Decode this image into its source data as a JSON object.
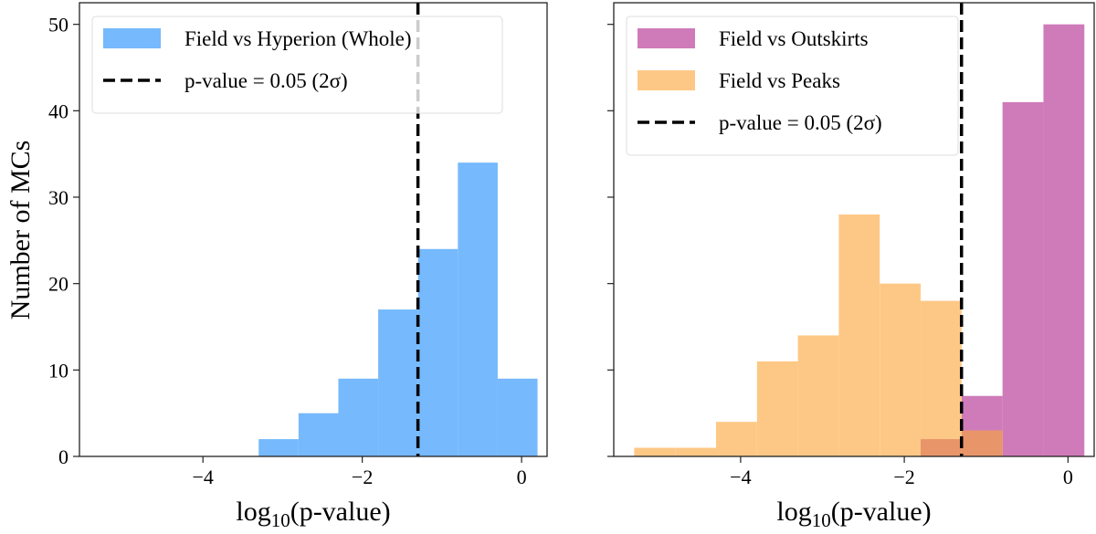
{
  "chart_data": [
    {
      "type": "bar",
      "panel": "left",
      "xlabel": "log10(p-value)",
      "ylabel": "Number of MCs",
      "xlim": [
        -5.55,
        0.32
      ],
      "ylim": [
        0,
        52.5
      ],
      "xticks": [
        -4,
        -2,
        0
      ],
      "xtick_labels": [
        "−4",
        "−2",
        "0"
      ],
      "yticks": [
        0,
        10,
        20,
        30,
        40,
        50
      ],
      "ytick_labels": [
        "0",
        "10",
        "20",
        "30",
        "40",
        "50"
      ],
      "grid": false,
      "legend_placement": "top-center",
      "series": [
        {
          "name": "Field vs Hyperion (Whole)",
          "color": "#76b9fc",
          "bin_edges": [
            -3.3,
            -2.8,
            -2.3,
            -1.8,
            -1.3,
            -0.8,
            -0.3,
            0.2
          ],
          "values": [
            2,
            5,
            9,
            17,
            24,
            34,
            9
          ]
        }
      ],
      "vline": {
        "name": "p-value = 0.05 (2σ)",
        "x": -1.301,
        "color": "#000000",
        "style": "dashed"
      }
    },
    {
      "type": "bar",
      "panel": "right",
      "xlabel": "log10(p-value)",
      "xlim": [
        -5.55,
        0.32
      ],
      "ylim": [
        0,
        52.5
      ],
      "xticks": [
        -4,
        -2,
        0
      ],
      "xtick_labels": [
        "−4",
        "−2",
        "0"
      ],
      "yticks": [
        0,
        10,
        20,
        30,
        40,
        50
      ],
      "grid": false,
      "legend_placement": "top-left",
      "series": [
        {
          "name": "Field vs Outskirts",
          "color": "#cf7bb9",
          "bin_edges": [
            -1.8,
            -1.3,
            -0.8,
            -0.3,
            0.2
          ],
          "values": [
            2,
            7,
            41,
            50
          ]
        },
        {
          "name": "Field vs Peaks",
          "color": "#fdc886",
          "bin_edges": [
            -5.3,
            -4.8,
            -4.3,
            -3.8,
            -3.3,
            -2.8,
            -2.3,
            -1.8,
            -1.3,
            -0.8
          ],
          "values": [
            1,
            1,
            4,
            11,
            14,
            28,
            20,
            18,
            3
          ]
        }
      ],
      "overlap_color": "#e8956a",
      "vline": {
        "name": "p-value = 0.05 (2σ)",
        "x": -1.301,
        "color": "#000000",
        "style": "dashed"
      }
    }
  ]
}
